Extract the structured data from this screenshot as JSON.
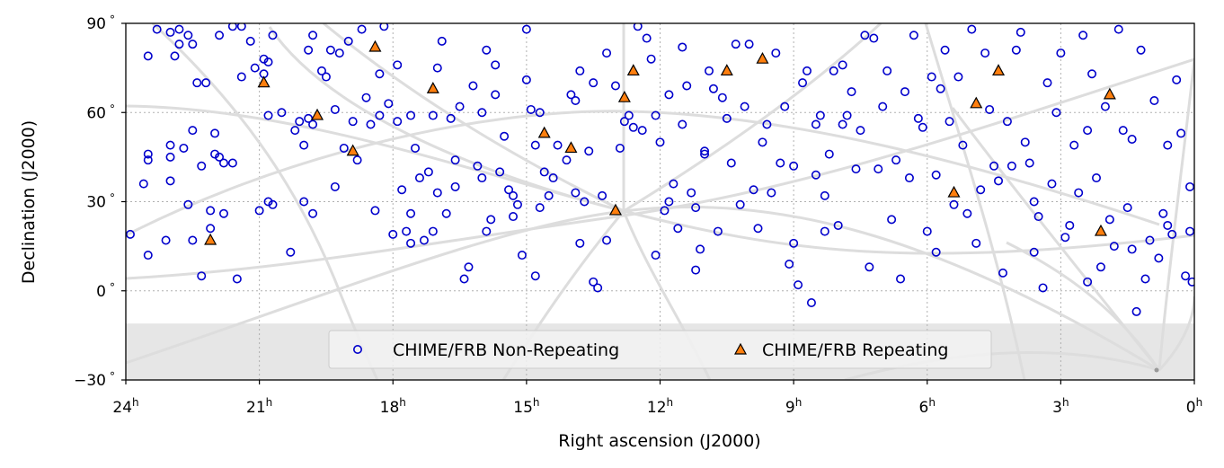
{
  "chart_data": {
    "type": "scatter",
    "xlabel": "Right ascension (J2000)",
    "ylabel": "Declination (J2000)",
    "x_unit": "h",
    "y_unit": "°",
    "xlim": [
      24,
      0
    ],
    "ylim": [
      -30,
      90
    ],
    "x_ticks": [
      "24",
      "21",
      "18",
      "15",
      "12",
      "9",
      "6",
      "3",
      "0"
    ],
    "y_ticks": [
      "−30",
      "0",
      "30",
      "60",
      "90"
    ],
    "grid": true,
    "unobserved_region_below_dec": -11,
    "legend": {
      "placement": "lower-center",
      "entries": [
        "CHIME/FRB Non-Repeating",
        "CHIME/FRB Repeating"
      ]
    },
    "colors": {
      "non_repeating": "#0000cc",
      "repeating_fill": "#ff7f0e",
      "repeating_edge": "#000000",
      "grid": "#b0b0b0",
      "shaded_region": "#e6e6e6",
      "galactic_lines": "#dddddd"
    },
    "series": [
      {
        "name": "CHIME/FRB Repeating",
        "marker": "triangle",
        "points": [
          [
            22.1,
            17
          ],
          [
            20.9,
            70
          ],
          [
            19.7,
            59
          ],
          [
            18.9,
            47
          ],
          [
            18.4,
            82
          ],
          [
            17.1,
            68
          ],
          [
            14.6,
            53
          ],
          [
            14.0,
            48
          ],
          [
            13.0,
            27
          ],
          [
            12.8,
            65
          ],
          [
            12.6,
            74
          ],
          [
            10.5,
            74
          ],
          [
            9.7,
            78
          ],
          [
            5.4,
            33
          ],
          [
            4.9,
            63
          ],
          [
            4.4,
            74
          ],
          [
            2.1,
            20
          ],
          [
            1.9,
            66
          ]
        ]
      },
      {
        "name": "CHIME/FRB Non-Repeating",
        "marker": "circle",
        "points": [
          [
            23.9,
            19
          ],
          [
            23.6,
            36
          ],
          [
            23.5,
            46
          ],
          [
            23.5,
            44
          ],
          [
            23.5,
            79
          ],
          [
            23.5,
            12
          ],
          [
            23.3,
            88
          ],
          [
            23.1,
            17
          ],
          [
            23.0,
            49
          ],
          [
            23.0,
            45
          ],
          [
            23.0,
            87
          ],
          [
            23.0,
            37
          ],
          [
            22.9,
            79
          ],
          [
            22.8,
            83
          ],
          [
            22.8,
            88
          ],
          [
            22.7,
            48
          ],
          [
            22.6,
            29
          ],
          [
            22.6,
            86
          ],
          [
            22.5,
            17
          ],
          [
            22.5,
            83
          ],
          [
            22.4,
            70
          ],
          [
            22.3,
            42
          ],
          [
            22.3,
            5
          ],
          [
            22.2,
            70
          ],
          [
            22.1,
            27
          ],
          [
            22.1,
            21
          ],
          [
            22.0,
            53
          ],
          [
            22.0,
            46
          ],
          [
            21.9,
            45
          ],
          [
            21.9,
            86
          ],
          [
            21.8,
            26
          ],
          [
            21.8,
            43
          ],
          [
            21.6,
            89
          ],
          [
            21.6,
            43
          ],
          [
            21.5,
            4
          ],
          [
            21.4,
            89
          ],
          [
            21.4,
            72
          ],
          [
            21.2,
            84
          ],
          [
            21.1,
            75
          ],
          [
            21.0,
            27
          ],
          [
            20.8,
            59
          ],
          [
            20.8,
            30
          ],
          [
            20.8,
            77
          ],
          [
            20.9,
            78
          ],
          [
            20.9,
            73
          ],
          [
            20.7,
            29
          ],
          [
            20.7,
            86
          ],
          [
            20.5,
            60
          ],
          [
            20.2,
            54
          ],
          [
            20.1,
            57
          ],
          [
            20.0,
            30
          ],
          [
            19.9,
            58
          ],
          [
            20.0,
            49
          ],
          [
            19.8,
            56
          ],
          [
            19.8,
            26
          ],
          [
            19.9,
            81
          ],
          [
            19.8,
            86
          ],
          [
            19.6,
            74
          ],
          [
            19.5,
            72
          ],
          [
            19.4,
            81
          ],
          [
            19.3,
            61
          ],
          [
            19.2,
            80
          ],
          [
            19.1,
            48
          ],
          [
            19.0,
            84
          ],
          [
            18.9,
            57
          ],
          [
            18.8,
            44
          ],
          [
            18.7,
            88
          ],
          [
            18.6,
            65
          ],
          [
            18.5,
            56
          ],
          [
            18.4,
            27
          ],
          [
            18.3,
            73
          ],
          [
            18.3,
            59
          ],
          [
            18.2,
            89
          ],
          [
            18.1,
            63
          ],
          [
            18.0,
            19
          ],
          [
            17.9,
            57
          ],
          [
            17.8,
            34
          ],
          [
            17.7,
            20
          ],
          [
            17.6,
            26
          ],
          [
            17.6,
            59
          ],
          [
            17.6,
            16
          ],
          [
            17.5,
            48
          ],
          [
            17.4,
            38
          ],
          [
            17.3,
            17
          ],
          [
            17.2,
            40
          ],
          [
            17.1,
            20
          ],
          [
            17.1,
            59
          ],
          [
            17.0,
            75
          ],
          [
            17.0,
            33
          ],
          [
            16.9,
            84
          ],
          [
            16.8,
            26
          ],
          [
            16.7,
            58
          ],
          [
            16.6,
            44
          ],
          [
            16.5,
            62
          ],
          [
            16.4,
            4
          ],
          [
            16.3,
            8
          ],
          [
            16.2,
            69
          ],
          [
            16.1,
            42
          ],
          [
            16.0,
            60
          ],
          [
            16.0,
            38
          ],
          [
            15.9,
            20
          ],
          [
            15.9,
            81
          ],
          [
            15.8,
            24
          ],
          [
            15.7,
            76
          ],
          [
            15.7,
            66
          ],
          [
            15.6,
            40
          ],
          [
            15.5,
            52
          ],
          [
            15.4,
            34
          ],
          [
            15.3,
            32
          ],
          [
            15.3,
            25
          ],
          [
            15.2,
            29
          ],
          [
            15.1,
            12
          ],
          [
            15.0,
            88
          ],
          [
            14.9,
            61
          ],
          [
            14.8,
            5
          ],
          [
            14.8,
            49
          ],
          [
            14.7,
            60
          ],
          [
            14.7,
            28
          ],
          [
            14.6,
            40
          ],
          [
            14.5,
            32
          ],
          [
            14.4,
            38
          ],
          [
            14.3,
            49
          ],
          [
            14.1,
            44
          ],
          [
            14.0,
            66
          ],
          [
            13.9,
            64
          ],
          [
            13.8,
            74
          ],
          [
            13.8,
            16
          ],
          [
            13.7,
            30
          ],
          [
            13.6,
            47
          ],
          [
            13.5,
            70
          ],
          [
            13.5,
            3
          ],
          [
            13.4,
            1
          ],
          [
            13.3,
            32
          ],
          [
            13.2,
            80
          ],
          [
            13.2,
            17
          ],
          [
            13.0,
            69
          ],
          [
            12.9,
            48
          ],
          [
            12.8,
            57
          ],
          [
            12.7,
            59
          ],
          [
            12.6,
            55
          ],
          [
            12.5,
            89
          ],
          [
            12.4,
            54
          ],
          [
            12.3,
            85
          ],
          [
            12.2,
            78
          ],
          [
            12.1,
            59
          ],
          [
            12.0,
            50
          ],
          [
            11.9,
            27
          ],
          [
            11.8,
            66
          ],
          [
            11.8,
            30
          ],
          [
            11.7,
            36
          ],
          [
            11.6,
            21
          ],
          [
            11.5,
            56
          ],
          [
            11.5,
            82
          ],
          [
            11.4,
            69
          ],
          [
            11.3,
            33
          ],
          [
            11.2,
            28
          ],
          [
            11.1,
            14
          ],
          [
            11.0,
            46
          ],
          [
            11.0,
            47
          ],
          [
            10.9,
            74
          ],
          [
            10.8,
            68
          ],
          [
            10.7,
            20
          ],
          [
            10.6,
            65
          ],
          [
            10.4,
            43
          ],
          [
            10.3,
            83
          ],
          [
            10.2,
            29
          ],
          [
            10.1,
            62
          ],
          [
            10.0,
            83
          ],
          [
            9.9,
            34
          ],
          [
            9.8,
            21
          ],
          [
            9.7,
            50
          ],
          [
            9.6,
            56
          ],
          [
            9.5,
            33
          ],
          [
            9.4,
            80
          ],
          [
            9.3,
            43
          ],
          [
            9.2,
            62
          ],
          [
            9.1,
            9
          ],
          [
            9.0,
            42
          ],
          [
            9.0,
            16
          ],
          [
            8.9,
            2
          ],
          [
            8.8,
            70
          ],
          [
            8.7,
            74
          ],
          [
            8.6,
            -4
          ],
          [
            8.5,
            56
          ],
          [
            8.4,
            59
          ],
          [
            8.3,
            20
          ],
          [
            8.3,
            32
          ],
          [
            8.2,
            46
          ],
          [
            8.1,
            74
          ],
          [
            8.0,
            22
          ],
          [
            7.9,
            56
          ],
          [
            7.8,
            59
          ],
          [
            7.7,
            67
          ],
          [
            7.6,
            41
          ],
          [
            7.5,
            54
          ],
          [
            7.4,
            86
          ],
          [
            7.3,
            8
          ],
          [
            7.2,
            85
          ],
          [
            7.1,
            41
          ],
          [
            7.0,
            62
          ],
          [
            6.9,
            74
          ],
          [
            6.8,
            24
          ],
          [
            6.7,
            44
          ],
          [
            6.5,
            67
          ],
          [
            6.4,
            38
          ],
          [
            6.3,
            86
          ],
          [
            6.2,
            58
          ],
          [
            6.1,
            55
          ],
          [
            6.0,
            20
          ],
          [
            5.9,
            72
          ],
          [
            5.8,
            39
          ],
          [
            5.7,
            68
          ],
          [
            5.6,
            81
          ],
          [
            5.5,
            57
          ],
          [
            5.4,
            29
          ],
          [
            5.3,
            72
          ],
          [
            5.2,
            49
          ],
          [
            5.1,
            26
          ],
          [
            5.0,
            88
          ],
          [
            4.9,
            16
          ],
          [
            4.8,
            34
          ],
          [
            4.7,
            80
          ],
          [
            4.6,
            61
          ],
          [
            4.5,
            42
          ],
          [
            4.4,
            37
          ],
          [
            4.3,
            6
          ],
          [
            4.2,
            57
          ],
          [
            4.1,
            42
          ],
          [
            4.0,
            81
          ],
          [
            3.9,
            87
          ],
          [
            3.8,
            50
          ],
          [
            3.7,
            43
          ],
          [
            3.6,
            13
          ],
          [
            3.5,
            25
          ],
          [
            3.4,
            1
          ],
          [
            3.3,
            70
          ],
          [
            3.2,
            36
          ],
          [
            3.1,
            60
          ],
          [
            3.0,
            80
          ],
          [
            2.9,
            18
          ],
          [
            2.8,
            22
          ],
          [
            2.7,
            49
          ],
          [
            2.6,
            33
          ],
          [
            2.5,
            86
          ],
          [
            2.4,
            54
          ],
          [
            2.3,
            73
          ],
          [
            2.2,
            38
          ],
          [
            2.1,
            8
          ],
          [
            2.0,
            62
          ],
          [
            1.9,
            24
          ],
          [
            1.8,
            15
          ],
          [
            1.7,
            88
          ],
          [
            1.6,
            54
          ],
          [
            1.5,
            28
          ],
          [
            1.4,
            51
          ],
          [
            1.3,
            -7
          ],
          [
            1.2,
            81
          ],
          [
            1.1,
            4
          ],
          [
            1.0,
            17
          ],
          [
            0.9,
            64
          ],
          [
            0.8,
            11
          ],
          [
            0.7,
            26
          ],
          [
            0.6,
            49
          ],
          [
            0.5,
            19
          ],
          [
            0.4,
            71
          ],
          [
            0.3,
            53
          ],
          [
            0.2,
            5
          ],
          [
            0.1,
            20
          ],
          [
            0.1,
            35
          ],
          [
            0.05,
            3
          ],
          [
            0.6,
            22
          ],
          [
            1.4,
            14
          ],
          [
            2.4,
            3
          ],
          [
            3.6,
            30
          ],
          [
            5.8,
            13
          ],
          [
            6.6,
            4
          ],
          [
            7.9,
            76
          ],
          [
            8.5,
            39
          ],
          [
            10.5,
            58
          ],
          [
            11.2,
            7
          ],
          [
            12.1,
            12
          ],
          [
            13.9,
            33
          ],
          [
            15.0,
            71
          ],
          [
            16.6,
            35
          ],
          [
            17.9,
            76
          ],
          [
            19.3,
            35
          ],
          [
            20.3,
            13
          ],
          [
            22.5,
            54
          ]
        ]
      }
    ]
  }
}
